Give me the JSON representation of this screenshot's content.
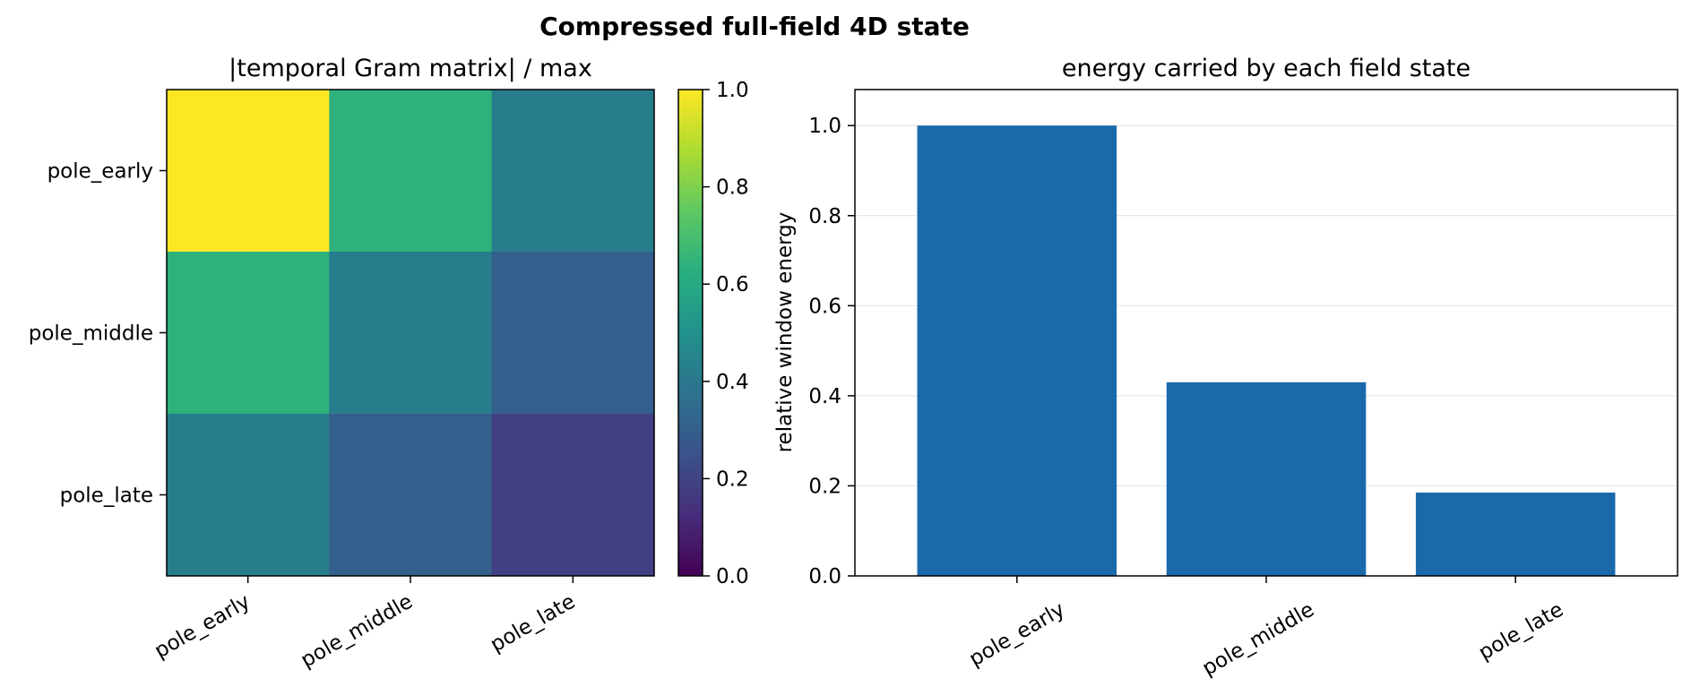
{
  "figure": {
    "title": "Compressed full-field 4D state"
  },
  "chart_data": [
    {
      "type": "heatmap",
      "title": "|temporal Gram matrix| / max",
      "x_categories": [
        "pole_early",
        "pole_middle",
        "pole_late"
      ],
      "y_categories": [
        "pole_early",
        "pole_middle",
        "pole_late"
      ],
      "values": [
        [
          1.0,
          0.64,
          0.42
        ],
        [
          0.64,
          0.42,
          0.3
        ],
        [
          0.42,
          0.3,
          0.19
        ]
      ],
      "colormap": "viridis",
      "colorbar": {
        "vmin": 0.0,
        "vmax": 1.0,
        "ticks": [
          "0.0",
          "0.2",
          "0.4",
          "0.6",
          "0.8",
          "1.0"
        ]
      }
    },
    {
      "type": "bar",
      "title": "energy carried by each field state",
      "categories": [
        "pole_early",
        "pole_middle",
        "pole_late"
      ],
      "values": [
        1.0,
        0.43,
        0.185
      ],
      "ylabel": "relative window energy",
      "xlabel": "",
      "ylim": [
        0,
        1.08
      ],
      "yticks": [
        "0.0",
        "0.2",
        "0.4",
        "0.6",
        "0.8",
        "1.0"
      ],
      "grid": "y",
      "bar_color": "#1a6aab"
    }
  ]
}
